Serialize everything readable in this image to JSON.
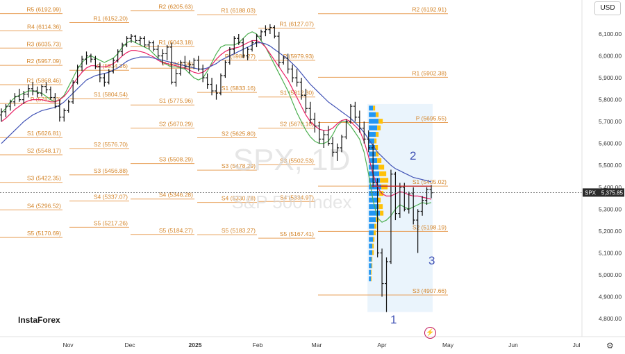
{
  "header": {
    "currency_label": "USD"
  },
  "brand": {
    "logo_text": "InstaForex"
  },
  "watermark": {
    "ticker": "SPX, 1D",
    "name": "S&P 500 Index"
  },
  "price_tag": {
    "symbol": "SPX",
    "value": "5,375.85"
  },
  "icons": {
    "settings": "gear-icon",
    "replay": "lightning-icon"
  },
  "colors": {
    "candle": "#111111",
    "pivot_line": "#e8a05a",
    "pivot_text": "#d4862c",
    "ma_fast": "#4caf50",
    "ma_mid": "#e91e63",
    "ma_slow": "#3f51b5",
    "volume_a": "#2196f3",
    "volume_b": "#ffc107",
    "range_box": "#e6f2fb",
    "wave_label": "#3f51b5"
  },
  "chart_data": {
    "type": "candlestick",
    "title": "SPX, 1D",
    "subtitle": "S&P 500 Index",
    "ylim": [
      4700,
      6200
    ],
    "y_ticks": [
      "6,100.00",
      "6,000.00",
      "5,900.00",
      "5,800.00",
      "5,700.00",
      "5,600.00",
      "5,500.00",
      "5,400.00",
      "5,300.00",
      "5,200.00",
      "5,100.00",
      "5,000.00",
      "4,900.00",
      "4,800.00"
    ],
    "x_ticks": [
      "Nov",
      "Dec",
      "2025",
      "Feb",
      "Mar",
      "Apr",
      "May",
      "Jun",
      "Jul"
    ],
    "current_price": 5375.85,
    "pivot_levels": [
      {
        "label": "R5 (6192.99)",
        "value": 6192.99,
        "period": 1
      },
      {
        "label": "R4 (6114.36)",
        "value": 6114.36,
        "period": 1
      },
      {
        "label": "R3 (6035.73)",
        "value": 6035.73,
        "period": 1
      },
      {
        "label": "R2 (5957.09)",
        "value": 5957.09,
        "period": 1
      },
      {
        "label": "R1 (5868.46)",
        "value": 5868.46,
        "period": 1
      },
      {
        "label": "P (5782.63)",
        "value": 5782.63,
        "period": 1
      },
      {
        "label": "S1 (5626.81)",
        "value": 5626.81,
        "period": 1
      },
      {
        "label": "S2 (5548.17)",
        "value": 5548.17,
        "period": 1
      },
      {
        "label": "S3 (5422.35)",
        "value": 5422.35,
        "period": 1
      },
      {
        "label": "S4 (5296.52)",
        "value": 5296.52,
        "period": 1
      },
      {
        "label": "S5 (5170.69)",
        "value": 5170.69,
        "period": 1
      },
      {
        "label": "R1 (6152.20)",
        "value": 6152.2,
        "period": 2
      },
      {
        "label": "P (5934.36)",
        "value": 5934.36,
        "period": 2
      },
      {
        "label": "S1 (5804.54)",
        "value": 5804.54,
        "period": 2
      },
      {
        "label": "S2 (5576.70)",
        "value": 5576.7,
        "period": 2
      },
      {
        "label": "S3 (5456.88)",
        "value": 5456.88,
        "period": 2
      },
      {
        "label": "S4 (5337.07)",
        "value": 5337.07,
        "period": 2
      },
      {
        "label": "S5 (5217.26)",
        "value": 5217.26,
        "period": 2
      },
      {
        "label": "R2 (6205.63)",
        "value": 6205.63,
        "period": 3
      },
      {
        "label": "R1 (6043.18)",
        "value": 6043.18,
        "period": 3
      },
      {
        "label": "P (5943.96)",
        "value": 5943.96,
        "period": 3
      },
      {
        "label": "S1 (5775.96)",
        "value": 5775.96,
        "period": 3
      },
      {
        "label": "S2 (5670.29)",
        "value": 5670.29,
        "period": 3
      },
      {
        "label": "S3 (5508.29)",
        "value": 5508.29,
        "period": 3
      },
      {
        "label": "S4 (5346.28)",
        "value": 5346.28,
        "period": 3
      },
      {
        "label": "S5 (5184.27)",
        "value": 5184.27,
        "period": 3
      },
      {
        "label": "R1 (6188.03)",
        "value": 6188.03,
        "period": 4
      },
      {
        "label": "P (5980.27)",
        "value": 5980.27,
        "period": 4
      },
      {
        "label": "S1 (5833.16)",
        "value": 5833.16,
        "period": 4
      },
      {
        "label": "S2 (5625.80)",
        "value": 5625.8,
        "period": 4
      },
      {
        "label": "S3 (5478.29)",
        "value": 5478.29,
        "period": 4
      },
      {
        "label": "S4 (5330.78)",
        "value": 5330.78,
        "period": 4
      },
      {
        "label": "S5 (5183.27)",
        "value": 5183.27,
        "period": 4
      },
      {
        "label": "R1 (6127.07)",
        "value": 6127.07,
        "period": 5
      },
      {
        "label": "P (5979.93)",
        "value": 5979.93,
        "period": 5
      },
      {
        "label": "S1 (5812.30)",
        "value": 5812.3,
        "period": 5
      },
      {
        "label": "S2 (5670.10)",
        "value": 5670.1,
        "period": 5
      },
      {
        "label": "S3 (5502.53)",
        "value": 5502.53,
        "period": 5
      },
      {
        "label": "S4 (5334.97)",
        "value": 5334.97,
        "period": 5
      },
      {
        "label": "S5 (5167.41)",
        "value": 5167.41,
        "period": 5
      },
      {
        "label": "R2 (6192.91)",
        "value": 6192.91,
        "period": 6
      },
      {
        "label": "R1 (5902.38)",
        "value": 5902.38,
        "period": 6
      },
      {
        "label": "P (5695.55)",
        "value": 5695.55,
        "period": 6
      },
      {
        "label": "S1 (5405.02)",
        "value": 5405.02,
        "period": 6
      },
      {
        "label": "S2 (5198.19)",
        "value": 5198.19,
        "period": 6
      },
      {
        "label": "S3 (4907.66)",
        "value": 4907.66,
        "period": 6
      }
    ],
    "candles": [
      [
        5730,
        5760,
        5700,
        5745
      ],
      [
        5745,
        5780,
        5720,
        5770
      ],
      [
        5770,
        5800,
        5750,
        5790
      ],
      [
        5790,
        5830,
        5770,
        5815
      ],
      [
        5815,
        5850,
        5790,
        5800
      ],
      [
        5800,
        5840,
        5780,
        5825
      ],
      [
        5825,
        5870,
        5810,
        5850
      ],
      [
        5850,
        5880,
        5820,
        5840
      ],
      [
        5840,
        5860,
        5810,
        5830
      ],
      [
        5830,
        5870,
        5815,
        5860
      ],
      [
        5860,
        5880,
        5830,
        5845
      ],
      [
        5845,
        5860,
        5800,
        5810
      ],
      [
        5810,
        5830,
        5760,
        5770
      ],
      [
        5770,
        5800,
        5700,
        5720
      ],
      [
        5720,
        5760,
        5700,
        5750
      ],
      [
        5750,
        5800,
        5740,
        5790
      ],
      [
        5790,
        5890,
        5780,
        5880
      ],
      [
        5880,
        5960,
        5870,
        5950
      ],
      [
        5950,
        6000,
        5930,
        5985
      ],
      [
        5985,
        6020,
        5960,
        6000
      ],
      [
        6000,
        6010,
        5970,
        5985
      ],
      [
        5985,
        6000,
        5940,
        5950
      ],
      [
        5950,
        5970,
        5880,
        5900
      ],
      [
        5900,
        5920,
        5860,
        5880
      ],
      [
        5880,
        5940,
        5870,
        5930
      ],
      [
        5930,
        5990,
        5920,
        5980
      ],
      [
        5980,
        6030,
        5970,
        6020
      ],
      [
        6020,
        6060,
        6000,
        6050
      ],
      [
        6050,
        6090,
        6040,
        6080
      ],
      [
        6080,
        6100,
        6060,
        6090
      ],
      [
        6090,
        6095,
        6060,
        6070
      ],
      [
        6070,
        6090,
        6050,
        6080
      ],
      [
        6080,
        6090,
        6040,
        6050
      ],
      [
        6050,
        6070,
        6030,
        6060
      ],
      [
        6060,
        6070,
        6020,
        6030
      ],
      [
        6030,
        6050,
        5990,
        6000
      ],
      [
        6000,
        6030,
        5960,
        6010
      ],
      [
        6010,
        6050,
        5980,
        6040
      ],
      [
        6040,
        6060,
        5870,
        5880
      ],
      [
        5880,
        5940,
        5860,
        5920
      ],
      [
        5920,
        5980,
        5910,
        5970
      ],
      [
        5970,
        6000,
        5940,
        5950
      ],
      [
        5950,
        5980,
        5920,
        5960
      ],
      [
        5960,
        5990,
        5940,
        5980
      ],
      [
        5980,
        6000,
        5930,
        5940
      ],
      [
        5940,
        5960,
        5880,
        5900
      ],
      [
        5900,
        5920,
        5850,
        5870
      ],
      [
        5870,
        5900,
        5820,
        5840
      ],
      [
        5840,
        5870,
        5800,
        5830
      ],
      [
        5830,
        5920,
        5820,
        5910
      ],
      [
        5910,
        5980,
        5900,
        5970
      ],
      [
        5970,
        6040,
        5960,
        6030
      ],
      [
        6030,
        6090,
        6010,
        6080
      ],
      [
        6080,
        6100,
        6050,
        6060
      ],
      [
        6060,
        6080,
        5990,
        6000
      ],
      [
        6000,
        6040,
        5980,
        6030
      ],
      [
        6030,
        6070,
        6020,
        6060
      ],
      [
        6060,
        6100,
        6040,
        6090
      ],
      [
        6090,
        6120,
        6070,
        6110
      ],
      [
        6110,
        6140,
        6090,
        6120
      ],
      [
        6120,
        6145,
        6100,
        6130
      ],
      [
        6130,
        6140,
        6080,
        6090
      ],
      [
        6090,
        6110,
        5950,
        5970
      ],
      [
        5970,
        6000,
        5960,
        5990
      ],
      [
        5990,
        6010,
        5920,
        5940
      ],
      [
        5940,
        5960,
        5880,
        5900
      ],
      [
        5900,
        5940,
        5860,
        5880
      ],
      [
        5880,
        5900,
        5800,
        5820
      ],
      [
        5820,
        5850,
        5740,
        5760
      ],
      [
        5760,
        5790,
        5690,
        5710
      ],
      [
        5710,
        5740,
        5650,
        5680
      ],
      [
        5680,
        5700,
        5600,
        5620
      ],
      [
        5620,
        5660,
        5580,
        5640
      ],
      [
        5640,
        5680,
        5590,
        5600
      ],
      [
        5600,
        5630,
        5540,
        5560
      ],
      [
        5560,
        5600,
        5520,
        5580
      ],
      [
        5580,
        5640,
        5560,
        5630
      ],
      [
        5630,
        5710,
        5620,
        5700
      ],
      [
        5700,
        5780,
        5690,
        5770
      ],
      [
        5770,
        5790,
        5700,
        5720
      ],
      [
        5720,
        5750,
        5650,
        5670
      ],
      [
        5670,
        5700,
        5600,
        5620
      ],
      [
        5620,
        5660,
        5560,
        5580
      ],
      [
        5580,
        5600,
        5400,
        5420
      ],
      [
        5420,
        5440,
        5080,
        5100
      ],
      [
        5100,
        5120,
        4900,
        4960
      ],
      [
        4960,
        5080,
        4830,
        5060
      ],
      [
        5060,
        5480,
        5050,
        5460
      ],
      [
        5460,
        5470,
        5250,
        5280
      ],
      [
        5280,
        5420,
        5260,
        5400
      ],
      [
        5400,
        5420,
        5290,
        5300
      ],
      [
        5300,
        5380,
        5280,
        5370
      ],
      [
        5370,
        5400,
        5230,
        5250
      ],
      [
        5250,
        5300,
        5100,
        5290
      ],
      [
        5290,
        5360,
        5270,
        5340
      ],
      [
        5340,
        5400,
        5320,
        5390
      ],
      [
        5390,
        5410,
        5350,
        5375
      ]
    ],
    "series": [
      {
        "name": "",
        "color_key": "ma_fast",
        "values": [
          5740,
          5760,
          5790,
          5810,
          5820,
          5830,
          5840,
          5840,
          5835,
          5830,
          5815,
          5800,
          5790,
          5800,
          5820,
          5860,
          5900,
          5940,
          5970,
          5990,
          6000,
          5990,
          5980,
          5970,
          5980,
          5990,
          6010,
          6040,
          6060,
          6070,
          6060,
          6050,
          6040,
          6030,
          6010,
          5990,
          5970,
          5960,
          5950,
          5950,
          5945,
          5940,
          5920,
          5900,
          5890,
          5900,
          5930,
          5970,
          6010,
          6040,
          6050,
          6050,
          6050,
          6060,
          6080,
          6100,
          6110,
          6100,
          6070,
          6040,
          6000,
          5960,
          5920,
          5880,
          5840,
          5790,
          5740,
          5700,
          5660,
          5630,
          5610,
          5600,
          5600,
          5610,
          5640,
          5680,
          5700,
          5700,
          5680,
          5650,
          5620,
          5560,
          5460,
          5340,
          5260,
          5240,
          5250,
          5270,
          5300,
          5320,
          5310,
          5300,
          5310,
          5320,
          5330,
          5325,
          5330
        ]
      },
      {
        "name": "",
        "color_key": "ma_mid",
        "values": [
          5700,
          5715,
          5735,
          5755,
          5770,
          5785,
          5795,
          5800,
          5800,
          5800,
          5795,
          5790,
          5790,
          5800,
          5815,
          5840,
          5870,
          5900,
          5925,
          5945,
          5955,
          5955,
          5950,
          5950,
          5955,
          5965,
          5980,
          6000,
          6015,
          6025,
          6025,
          6020,
          6015,
          6005,
          5995,
          5980,
          5970,
          5965,
          5960,
          5955,
          5950,
          5945,
          5935,
          5925,
          5920,
          5925,
          5940,
          5960,
          5985,
          6005,
          6020,
          6030,
          6035,
          6040,
          6050,
          6060,
          6070,
          6070,
          6060,
          6040,
          6010,
          5980,
          5950,
          5920,
          5890,
          5850,
          5810,
          5770,
          5730,
          5700,
          5680,
          5665,
          5660,
          5660,
          5670,
          5690,
          5705,
          5710,
          5700,
          5680,
          5660,
          5610,
          5540,
          5460,
          5400,
          5370,
          5360,
          5360,
          5370,
          5380,
          5375,
          5365,
          5360,
          5360,
          5355,
          5350,
          5345
        ]
      },
      {
        "name": "",
        "color_key": "ma_slow",
        "values": [
          5600,
          5620,
          5640,
          5660,
          5680,
          5700,
          5715,
          5730,
          5740,
          5750,
          5755,
          5760,
          5765,
          5775,
          5790,
          5810,
          5830,
          5850,
          5870,
          5890,
          5900,
          5910,
          5915,
          5920,
          5925,
          5935,
          5945,
          5960,
          5975,
          5985,
          5990,
          5995,
          5995,
          5995,
          5990,
          5985,
          5980,
          5975,
          5970,
          5965,
          5960,
          5955,
          5950,
          5945,
          5940,
          5940,
          5945,
          5955,
          5965,
          5980,
          5990,
          6000,
          6010,
          6020,
          6030,
          6040,
          6050,
          6060,
          6060,
          6055,
          6045,
          6030,
          6015,
          6000,
          5985,
          5965,
          5945,
          5920,
          5895,
          5870,
          5850,
          5830,
          5810,
          5790,
          5775,
          5760,
          5745,
          5730,
          5715,
          5695,
          5675,
          5650,
          5620,
          5590,
          5560,
          5540,
          5520,
          5500,
          5485,
          5475,
          5465,
          5455,
          5445,
          5440,
          5435,
          5430,
          5425
        ]
      }
    ],
    "annotations": [
      "1",
      "2",
      "3"
    ]
  }
}
